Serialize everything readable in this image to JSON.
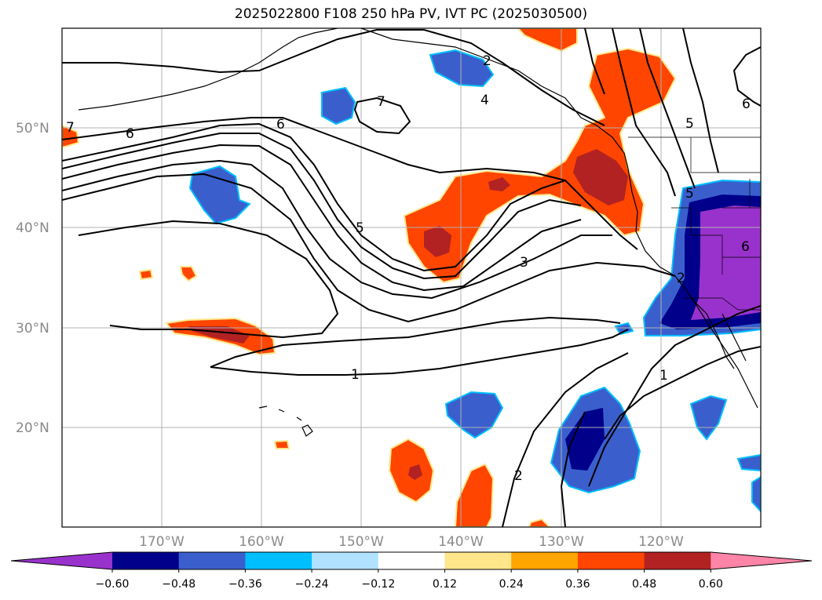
{
  "figure": {
    "title": "2025022800 F108 250 hPa PV, IVT PC (2025030500)"
  },
  "axes": {
    "lon_ticks": [
      "170°W",
      "160°W",
      "150°W",
      "140°W",
      "130°W",
      "120°W"
    ],
    "lat_ticks": [
      "50°N",
      "40°N",
      "30°N",
      "20°N"
    ],
    "grid": true
  },
  "contour_labels": [
    "7",
    "6",
    "6",
    "7",
    "4",
    "5",
    "6",
    "5",
    "2",
    "3",
    "5",
    "6",
    "2",
    "1",
    "1",
    "2"
  ],
  "colorbar": {
    "ticks": [
      "−0.60",
      "−0.48",
      "−0.36",
      "−0.24",
      "−0.12",
      "0.12",
      "0.24",
      "0.36",
      "0.48",
      "0.60"
    ],
    "colors": [
      "#9932cc",
      "#00008b",
      "#3a5fcd",
      "#00bfff",
      "#b0e2ff",
      "#ffffff",
      "#ffe68a",
      "#ffa500",
      "#ff4500",
      "#b22222",
      "#ff85a8"
    ]
  },
  "colors": {
    "purple": "#9932cc",
    "dark_blue": "#00008b",
    "blue": "#3a5fcd",
    "cyan": "#00bfff",
    "light_blue": "#b0e2ff",
    "yellow": "#ffe68a",
    "orange": "#ffa500",
    "red_orange": "#ff4500",
    "dark_red": "#b22222",
    "pink": "#ff85a8"
  }
}
